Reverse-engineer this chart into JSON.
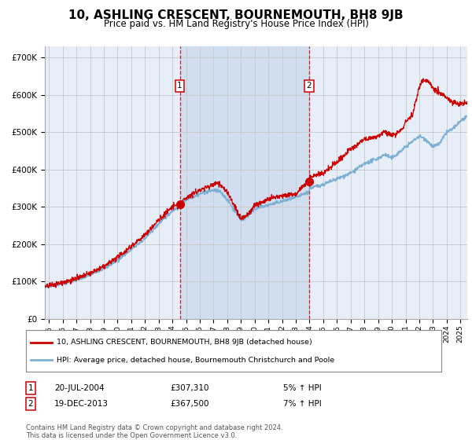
{
  "title": "10, ASHLING CRESCENT, BOURNEMOUTH, BH8 9JB",
  "subtitle": "Price paid vs. HM Land Registry's House Price Index (HPI)",
  "title_fontsize": 11,
  "subtitle_fontsize": 8.5,
  "background_color": "#ffffff",
  "plot_bg_color": "#e8eef8",
  "grid_color": "#c8c8c8",
  "ylabel_ticks": [
    "£0",
    "£100K",
    "£200K",
    "£300K",
    "£400K",
    "£500K",
    "£600K",
    "£700K"
  ],
  "ytick_values": [
    0,
    100000,
    200000,
    300000,
    400000,
    500000,
    600000,
    700000
  ],
  "ylim": [
    0,
    730000
  ],
  "xlim_start": 1994.7,
  "xlim_end": 2025.5,
  "x_tick_years": [
    1995,
    1996,
    1997,
    1998,
    1999,
    2000,
    2001,
    2002,
    2003,
    2004,
    2005,
    2006,
    2007,
    2008,
    2009,
    2010,
    2011,
    2012,
    2013,
    2014,
    2015,
    2016,
    2017,
    2018,
    2019,
    2020,
    2021,
    2022,
    2023,
    2024,
    2025
  ],
  "hpi_color": "#7bafd4",
  "price_color": "#cc0000",
  "sale1_x": 2004.54,
  "sale1_y": 307310,
  "sale1_label": "1",
  "sale1_date": "20-JUL-2004",
  "sale1_price": "£307,310",
  "sale1_hpi": "5% ↑ HPI",
  "sale2_x": 2013.96,
  "sale2_y": 367500,
  "sale2_label": "2",
  "sale2_date": "19-DEC-2013",
  "sale2_price": "£367,500",
  "sale2_hpi": "7% ↑ HPI",
  "shaded_start": 2004.54,
  "shaded_end": 2013.96,
  "legend_line1": "10, ASHLING CRESCENT, BOURNEMOUTH, BH8 9JB (detached house)",
  "legend_line2": "HPI: Average price, detached house, Bournemouth Christchurch and Poole",
  "footnote": "Contains HM Land Registry data © Crown copyright and database right 2024.\nThis data is licensed under the Open Government Licence v3.0."
}
